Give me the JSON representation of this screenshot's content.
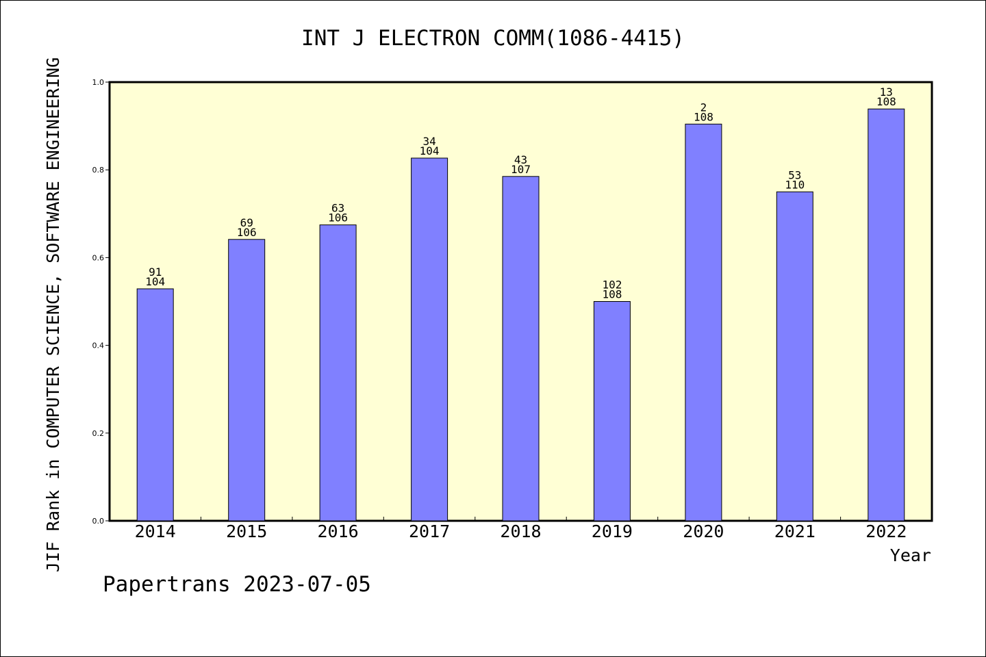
{
  "chart_data": {
    "type": "bar",
    "title": "INT J ELECTRON COMM(1086-4415)",
    "xlabel": "Year",
    "ylabel": "JIF Rank in COMPUTER SCIENCE, SOFTWARE ENGINEERING",
    "ylim": [
      0,
      1.0
    ],
    "yticks": [
      "0.0",
      "0.2",
      "0.4",
      "0.6",
      "0.8",
      "1.0"
    ],
    "categories": [
      "2014",
      "2015",
      "2016",
      "2017",
      "2018",
      "2019",
      "2020",
      "2021",
      "2022"
    ],
    "values": [
      0.5288,
      0.6415,
      0.6745,
      0.8269,
      0.785,
      0.5,
      0.9043,
      0.75,
      0.9389
    ],
    "bar_labels": [
      {
        "top": "91",
        "bottom": "104"
      },
      {
        "top": "69",
        "bottom": "106"
      },
      {
        "top": "63",
        "bottom": "106"
      },
      {
        "top": "34",
        "bottom": "104"
      },
      {
        "top": "43",
        "bottom": "107"
      },
      {
        "top": "102",
        "bottom": "108"
      },
      {
        "top": "2",
        "bottom": "108"
      },
      {
        "top": "53",
        "bottom": "110"
      },
      {
        "top": "13",
        "bottom": "108"
      }
    ],
    "colors": {
      "bar": "#8080ff",
      "plot_bg": "#ffffd5"
    },
    "grid": false
  },
  "footer": "Papertrans 2023-07-05"
}
